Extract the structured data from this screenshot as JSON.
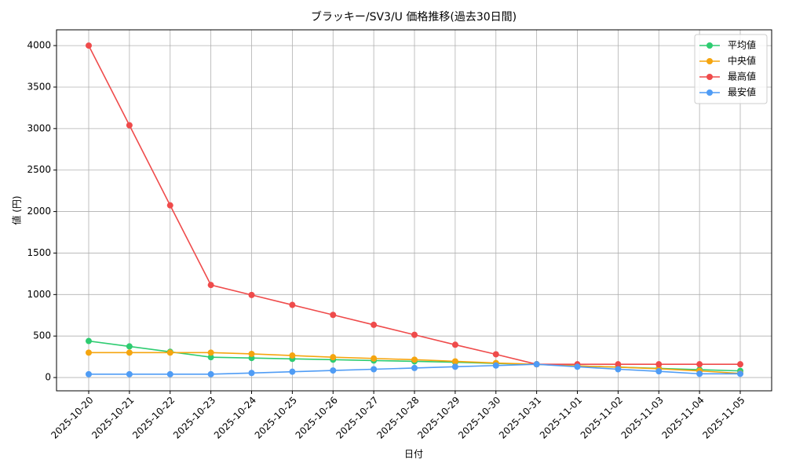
{
  "chart_data": {
    "type": "line",
    "title": "ブラッキー/SV3/U 価格推移(過去30日間)",
    "x_label": "日付",
    "y_label": "値 (円)",
    "categories": [
      "2025-10-20",
      "2025-10-21",
      "2025-10-22",
      "2025-10-23",
      "2025-10-24",
      "2025-10-25",
      "2025-10-26",
      "2025-10-27",
      "2025-10-28",
      "2025-10-29",
      "2025-10-30",
      "2025-10-31",
      "2025-11-01",
      "2025-11-02",
      "2025-11-03",
      "2025-11-04",
      "2025-11-05"
    ],
    "series": [
      {
        "name": "平均値",
        "color": "#2ecc71",
        "values": [
          440,
          375,
          310,
          245,
          235,
          225,
          215,
          205,
          195,
          185,
          170,
          160,
          140,
          125,
          110,
          95,
          80
        ]
      },
      {
        "name": "中央値",
        "color": "#f5a50f",
        "values": [
          300,
          300,
          300,
          300,
          285,
          265,
          245,
          230,
          215,
          195,
          175,
          160,
          140,
          125,
          105,
          80,
          50
        ]
      },
      {
        "name": "最高値",
        "color": "#ef4b4b",
        "values": [
          4000,
          3040,
          2075,
          1115,
          995,
          875,
          755,
          635,
          515,
          395,
          280,
          160,
          160,
          160,
          160,
          160,
          160
        ]
      },
      {
        "name": "最安値",
        "color": "#4f9cf5",
        "values": [
          40,
          40,
          40,
          40,
          55,
          70,
          85,
          100,
          115,
          130,
          145,
          160,
          130,
          100,
          75,
          45,
          45
        ]
      }
    ],
    "ylim": [
      -160,
      4190
    ],
    "yticks": [
      0,
      500,
      1000,
      1500,
      2000,
      2500,
      3000,
      3500,
      4000
    ],
    "grid": true,
    "legend": "upper right"
  }
}
